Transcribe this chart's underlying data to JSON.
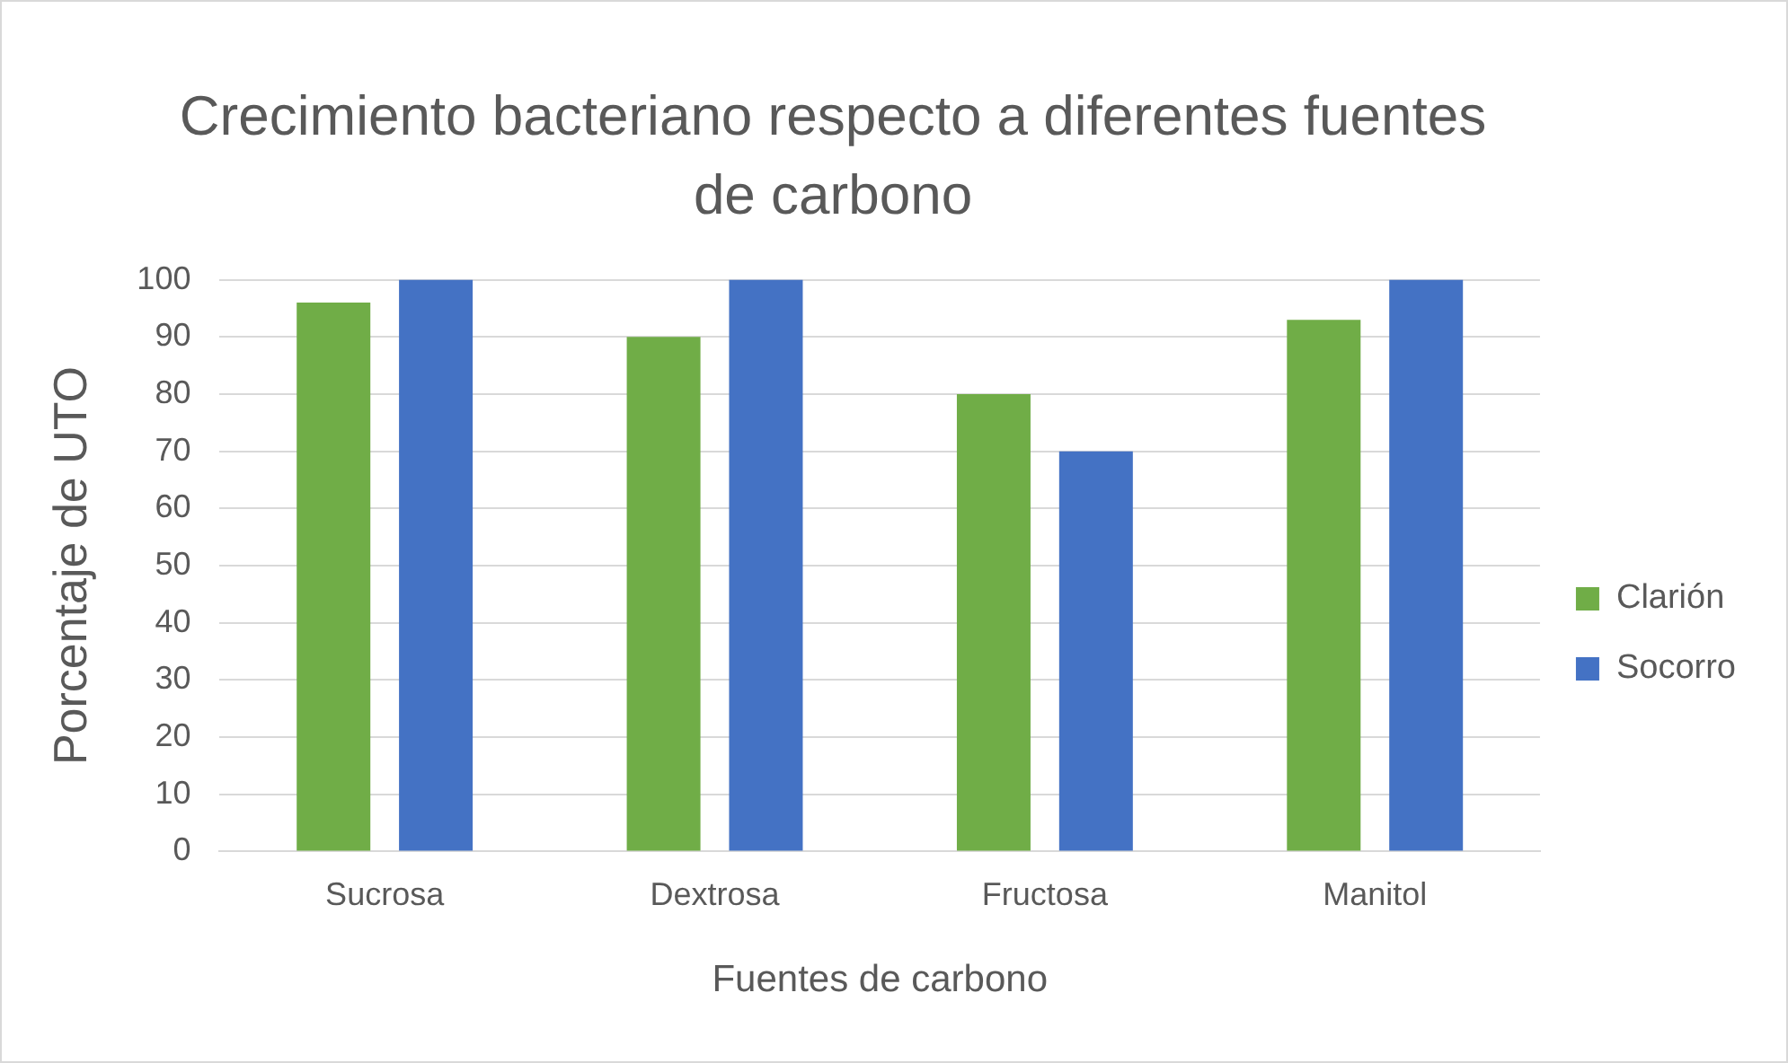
{
  "chart_data": {
    "type": "bar",
    "title": "Crecimiento bacteriano respecto a diferentes fuentes de carbono",
    "xlabel": "Fuentes de carbono",
    "ylabel": "Porcentaje de UTO",
    "categories": [
      "Sucrosa",
      "Dextrosa",
      "Fructosa",
      "Manitol"
    ],
    "series": [
      {
        "name": "Clarión",
        "color": "#70ad47",
        "values": [
          96,
          90,
          80,
          93
        ]
      },
      {
        "name": "Socorro",
        "color": "#4472c4",
        "values": [
          100,
          100,
          70,
          100
        ]
      }
    ],
    "ylim": [
      0,
      100
    ],
    "yticks": [
      0,
      10,
      20,
      30,
      40,
      50,
      60,
      70,
      80,
      90,
      100
    ],
    "grid": "y",
    "legend": "right"
  }
}
